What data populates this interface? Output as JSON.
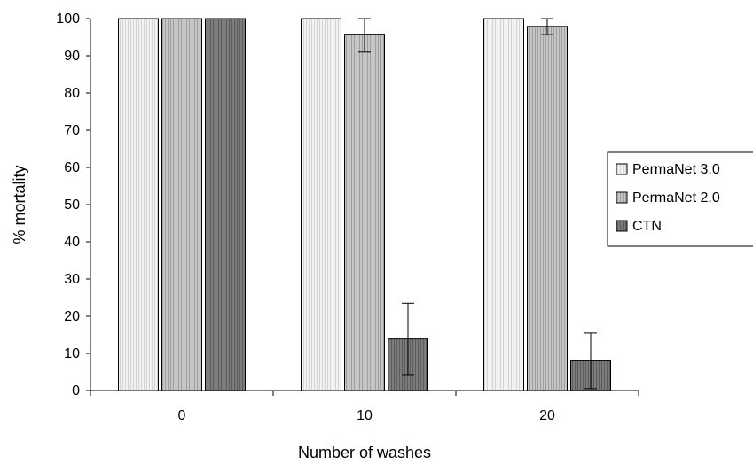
{
  "chart_data": {
    "type": "bar",
    "title": "",
    "xlabel": "Number of washes",
    "ylabel": "% mortality",
    "categories": [
      "0",
      "10",
      "20"
    ],
    "ylim": [
      0,
      100
    ],
    "yticks": [
      0,
      10,
      20,
      30,
      40,
      50,
      60,
      70,
      80,
      90,
      100
    ],
    "grid": false,
    "legend_position": "right",
    "series": [
      {
        "name": "PermaNet 3.0",
        "values": [
          100,
          100,
          100
        ],
        "error": [
          0,
          0,
          0
        ],
        "color": "#ececec",
        "pattern": "light-dotted"
      },
      {
        "name": "PermaNet 2.0",
        "values": [
          100,
          95.8,
          97.9
        ],
        "error": [
          0,
          4.8,
          2.2
        ],
        "color": "#bcbcbc",
        "pattern": "medium-striped"
      },
      {
        "name": "CTN",
        "values": [
          100,
          13.9,
          8
        ],
        "error": [
          0,
          9.6,
          7.5
        ],
        "color": "#767676",
        "pattern": "dark-striped"
      }
    ]
  }
}
